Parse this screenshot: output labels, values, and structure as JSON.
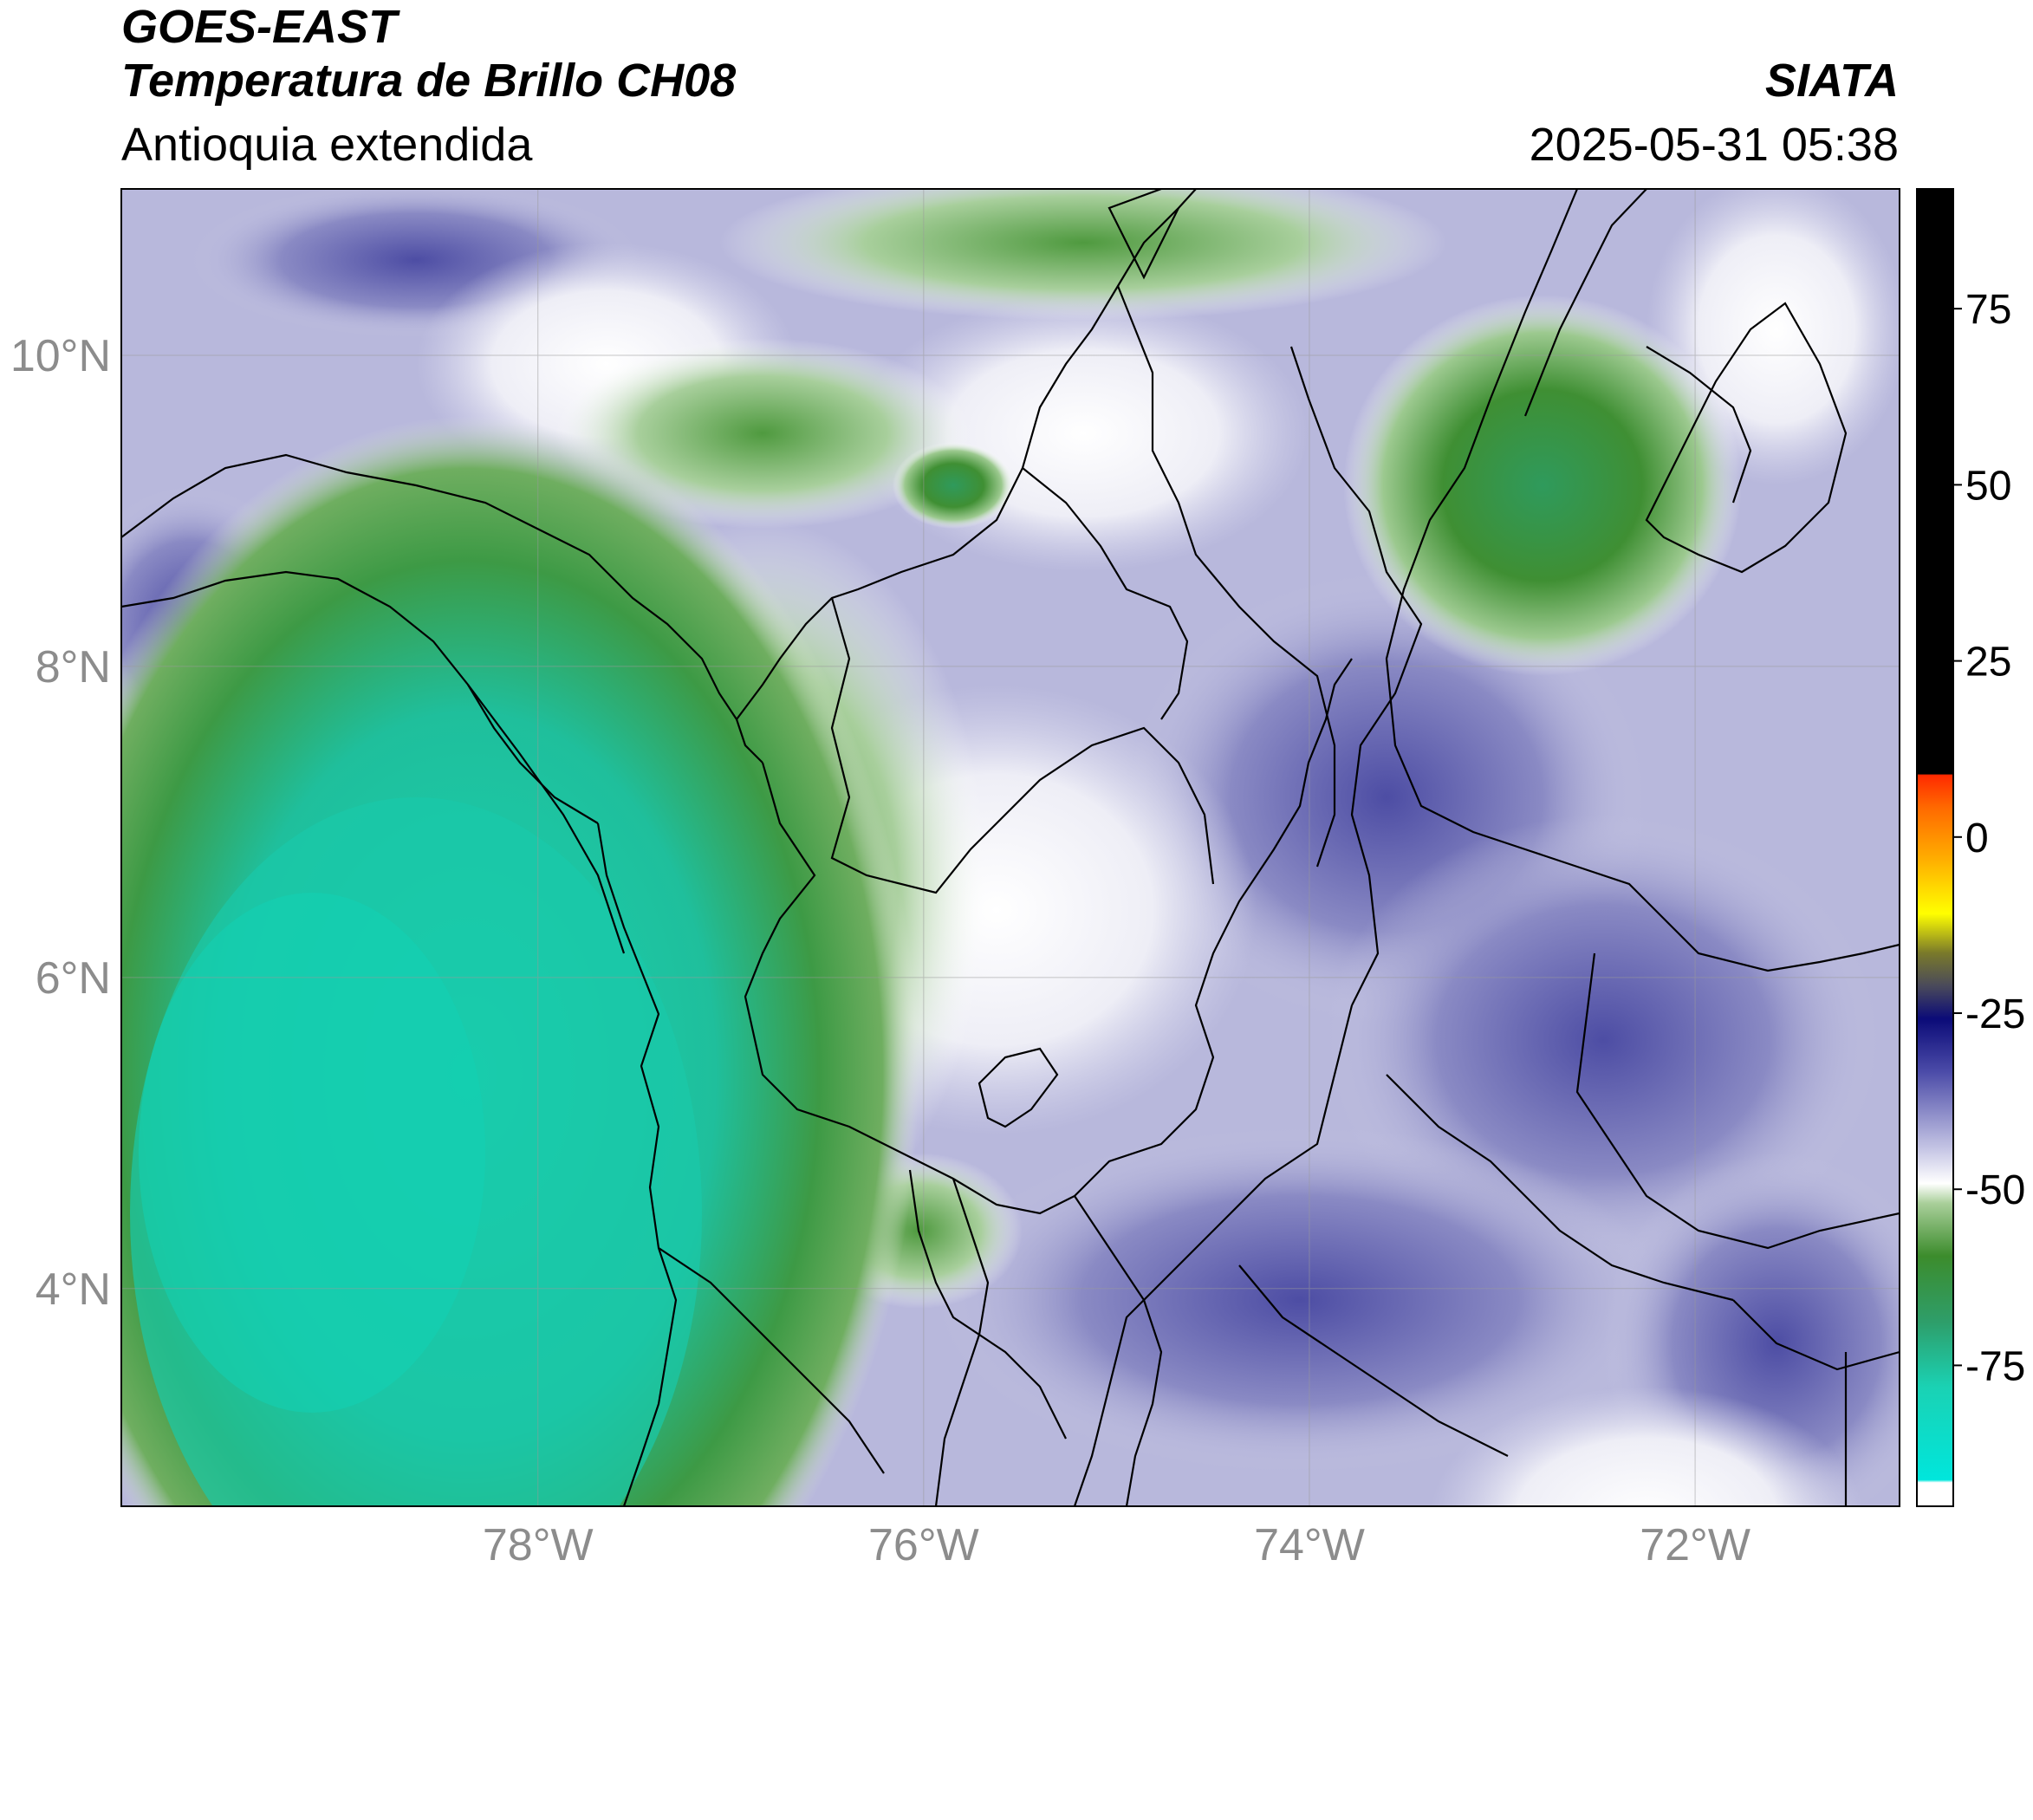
{
  "header": {
    "satellite": "GOES-EAST",
    "product": "Temperatura de Brillo CH08",
    "region": "Antioquia extendida",
    "organization": "SIATA",
    "timestamp": "2025-05-31 05:38"
  },
  "map": {
    "lat_labels": [
      "10°N",
      "8°N",
      "6°N",
      "4°N"
    ],
    "lon_labels": [
      "78°W",
      "76°W",
      "74°W",
      "72°W"
    ],
    "lat_values": [
      10,
      8,
      6,
      4
    ],
    "lon_values": [
      -78,
      -76,
      -74,
      -72
    ],
    "gridlines": true
  },
  "colorbar": {
    "tick_labels": [
      "75",
      "50",
      "25",
      "0",
      "-25",
      "-50",
      "-75"
    ],
    "tick_values": [
      75,
      50,
      25,
      0,
      -25,
      -50,
      -75
    ],
    "range": [
      -95,
      92
    ],
    "colors": {
      "warm_black": "#000000",
      "red": "#ff2a00",
      "orange": "#ff8c00",
      "yellow": "#ffff00",
      "olive": "#7a7a2a",
      "dark_navy": "#0b0b78",
      "blue_violet": "#4b4ba8",
      "lavender": "#c8c8e6",
      "white": "#ffffff",
      "green": "#3c8c2c",
      "teal": "#1ad2b4",
      "cyan": "#00e6dc"
    }
  },
  "legend_colors": {
    "land_border": "#000000",
    "cold_cloud_teal": "#17c9aa",
    "cloud_green": "#3f8f33",
    "clear_violet": "#5a5aaa"
  }
}
